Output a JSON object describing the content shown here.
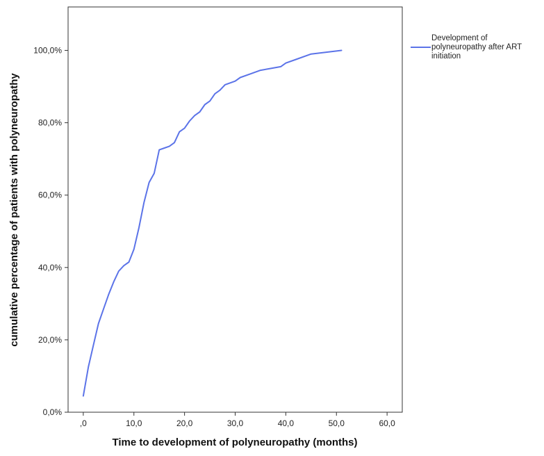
{
  "chart_data": {
    "type": "line",
    "xlabel": "Time to development of polyneuropathy (months)",
    "ylabel": "cumulative percentage of patients with polyneuropathy",
    "xlim": [
      -3,
      63
    ],
    "ylim": [
      0,
      112
    ],
    "x_ticks": [
      0,
      10,
      20,
      30,
      40,
      50,
      60
    ],
    "x_tick_labels": [
      ",0",
      "10,0",
      "20,0",
      "30,0",
      "40,0",
      "50,0",
      "60,0"
    ],
    "y_ticks": [
      0,
      20,
      40,
      60,
      80,
      100
    ],
    "y_tick_labels": [
      "0,0%",
      "20,0%",
      "40,0%",
      "60,0%",
      "80,0%",
      "100,0%"
    ],
    "grid": false,
    "legend_position": "right",
    "series": [
      {
        "name": "Development of polyneuropathy after ART initiation",
        "color": "#5b73e8",
        "x": [
          0,
          1,
          2,
          3,
          4,
          5,
          6,
          7,
          8,
          9,
          10,
          11,
          12,
          13,
          14,
          15,
          16,
          17,
          18,
          19,
          20,
          21,
          22,
          23,
          24,
          25,
          26,
          27,
          28,
          30,
          31,
          33,
          35,
          37,
          39,
          40,
          42,
          45,
          48,
          51
        ],
        "y": [
          4.5,
          12.5,
          18.5,
          24.5,
          28.5,
          32.5,
          36,
          39,
          40.5,
          41.5,
          45,
          51,
          58,
          63.5,
          66,
          72.5,
          73,
          73.5,
          74.5,
          77.5,
          78.5,
          80.5,
          82,
          83,
          85,
          86,
          88,
          89,
          90.5,
          91.5,
          92.5,
          93.5,
          94.5,
          95,
          95.5,
          96.5,
          97.5,
          99,
          99.5,
          100
        ]
      }
    ],
    "legend": {
      "lines": [
        "Development of",
        "polyneuropathy after ART",
        "initiation"
      ]
    }
  }
}
